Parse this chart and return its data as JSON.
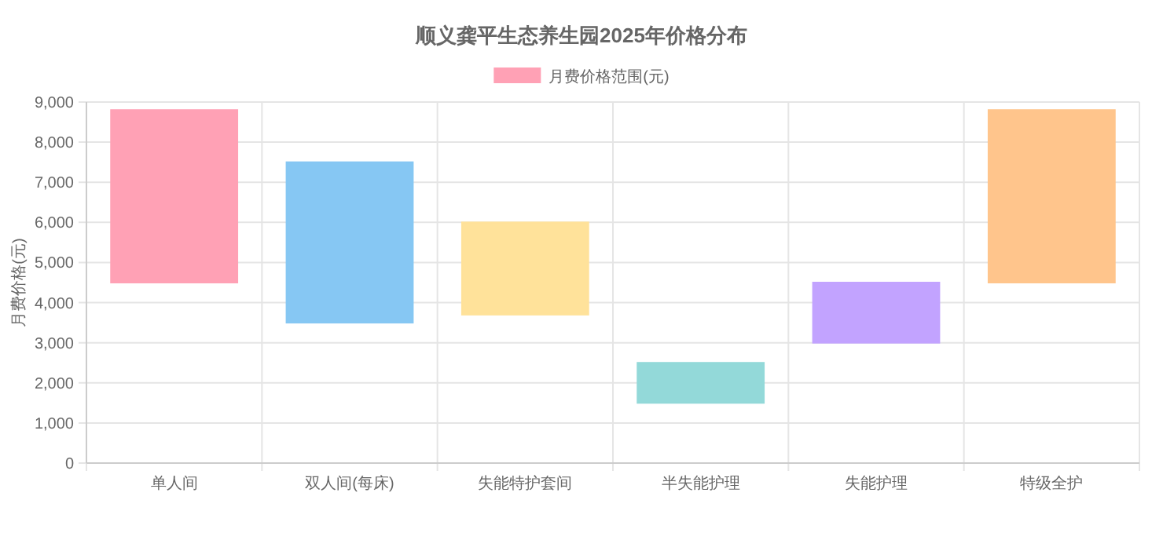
{
  "chart_data": {
    "type": "bar",
    "title": "顺义龚平生态养生园2025年价格分布",
    "ylabel": "月费价格(元)",
    "categories": [
      "单人间",
      "双人间(每床)",
      "失能特护套间",
      "半失能护理",
      "失能护理",
      "特级全护"
    ],
    "series": [
      {
        "name": "月费价格范围(元)",
        "colors": [
          "#ffa1b5",
          "#86c7f3",
          "#ffe29a",
          "#93d9d9",
          "#c2a3ff",
          "#ffc58c"
        ],
        "values": [
          4300,
          4000,
          2300,
          1000,
          1500,
          4300
        ],
        "base": [
          4500,
          3500,
          3700,
          1500,
          3000,
          4500
        ]
      }
    ],
    "ylim": [
      0,
      9000
    ],
    "yticks": [
      {
        "value": 0,
        "label": "0"
      },
      {
        "value": 1000,
        "label": "1,000"
      },
      {
        "value": 2000,
        "label": "2,000"
      },
      {
        "value": 3000,
        "label": "3,000"
      },
      {
        "value": 4000,
        "label": "4,000"
      },
      {
        "value": 5000,
        "label": "5,000"
      },
      {
        "value": 6000,
        "label": "6,000"
      },
      {
        "value": 7000,
        "label": "7,000"
      },
      {
        "value": 8000,
        "label": "8,000"
      },
      {
        "value": 9000,
        "label": "9,000"
      }
    ],
    "grid": true,
    "legend": "top"
  }
}
